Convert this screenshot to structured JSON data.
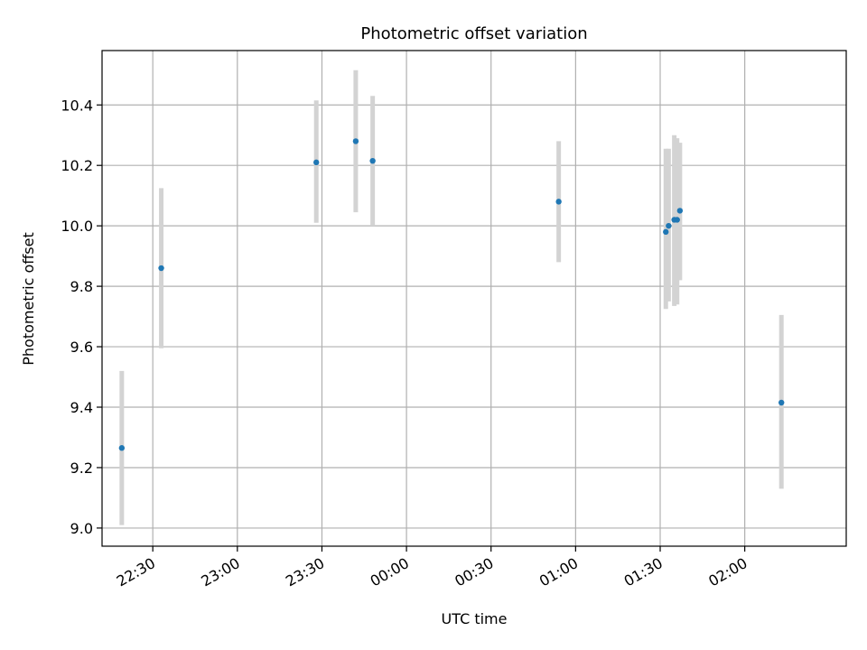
{
  "chart_data": {
    "type": "scatter",
    "title": "Photometric offset variation",
    "xlabel": "UTC time",
    "ylabel": "Photometric offset",
    "x_axis": {
      "kind": "time",
      "range": [
        "22:12",
        "02:36"
      ],
      "ticks": [
        "22:30",
        "23:00",
        "23:30",
        "00:00",
        "00:30",
        "01:00",
        "01:30",
        "02:00"
      ]
    },
    "y_axis": {
      "range": [
        8.94,
        10.58
      ],
      "ticks": [
        "9.0",
        "9.2",
        "9.4",
        "9.6",
        "9.8",
        "10.0",
        "10.2",
        "10.4"
      ]
    },
    "grid": true,
    "legend": "none",
    "marker_color": "#1f77b4",
    "errorbar_color": "#d3d3d3",
    "points": [
      {
        "x": "22:19",
        "y": 9.265,
        "err_low": 9.01,
        "err_high": 9.52
      },
      {
        "x": "22:33",
        "y": 9.86,
        "err_low": 9.595,
        "err_high": 10.125
      },
      {
        "x": "23:28",
        "y": 10.21,
        "err_low": 10.01,
        "err_high": 10.415
      },
      {
        "x": "23:42",
        "y": 10.28,
        "err_low": 10.045,
        "err_high": 10.515
      },
      {
        "x": "23:48",
        "y": 10.215,
        "err_low": 10.0,
        "err_high": 10.43
      },
      {
        "x": "00:54",
        "y": 10.08,
        "err_low": 9.88,
        "err_high": 10.28
      },
      {
        "x": "01:32",
        "y": 9.98,
        "err_low": 9.725,
        "err_high": 10.255
      },
      {
        "x": "01:33",
        "y": 10.0,
        "err_low": 9.75,
        "err_high": 10.255
      },
      {
        "x": "01:35",
        "y": 10.02,
        "err_low": 9.735,
        "err_high": 10.3
      },
      {
        "x": "01:36",
        "y": 10.02,
        "err_low": 9.74,
        "err_high": 10.29
      },
      {
        "x": "01:37",
        "y": 10.05,
        "err_low": 9.82,
        "err_high": 10.275
      },
      {
        "x": "02:13",
        "y": 9.415,
        "err_low": 9.13,
        "err_high": 9.705
      }
    ]
  }
}
